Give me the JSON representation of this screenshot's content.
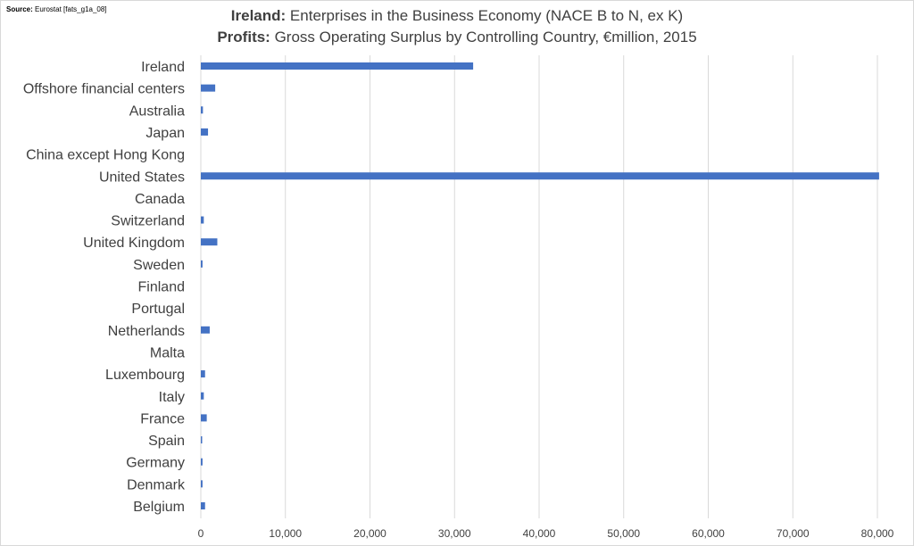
{
  "source": {
    "label": "Source:",
    "text": "Eurostat [fats_g1a_08]"
  },
  "title": {
    "line1_bold": "Ireland:",
    "line1_rest": "Enterprises in the Business Economy (NACE B to N, ex K)",
    "line2_bold": "Profits:",
    "line2_rest": "Gross Operating Surplus by Controlling Country, €million, 2015"
  },
  "colors": {
    "bar": "#4472c4",
    "grid": "#d9d9d9",
    "text": "#404040"
  },
  "chart_data": {
    "type": "bar",
    "orientation": "horizontal",
    "title": "Ireland: Enterprises in the Business Economy (NACE B to N, ex K) — Profits: Gross Operating Surplus by Controlling Country, €million, 2015",
    "categories": [
      "Ireland",
      "Offshore financial centers",
      "Australia",
      "Japan",
      "China except Hong Kong",
      "United States",
      "Canada",
      "Switzerland",
      "United Kingdom",
      "Sweden",
      "Finland",
      "Portugal",
      "Netherlands",
      "Malta",
      "Luxembourg",
      "Italy",
      "France",
      "Spain",
      "Germany",
      "Denmark",
      "Belgium"
    ],
    "values": [
      32200,
      1700,
      250,
      850,
      0,
      80200,
      0,
      350,
      1950,
      200,
      0,
      0,
      1050,
      0,
      500,
      350,
      700,
      100,
      200,
      200,
      500
    ],
    "xlim": [
      0,
      80000
    ],
    "x_ticks": [
      0,
      10000,
      20000,
      30000,
      40000,
      50000,
      60000,
      70000,
      80000
    ],
    "x_tick_labels": [
      "0",
      "10,000",
      "20,000",
      "30,000",
      "40,000",
      "50,000",
      "60,000",
      "70,000",
      "80,000"
    ],
    "xlabel": "",
    "ylabel": "",
    "grid": "vertical",
    "legend": "none"
  }
}
